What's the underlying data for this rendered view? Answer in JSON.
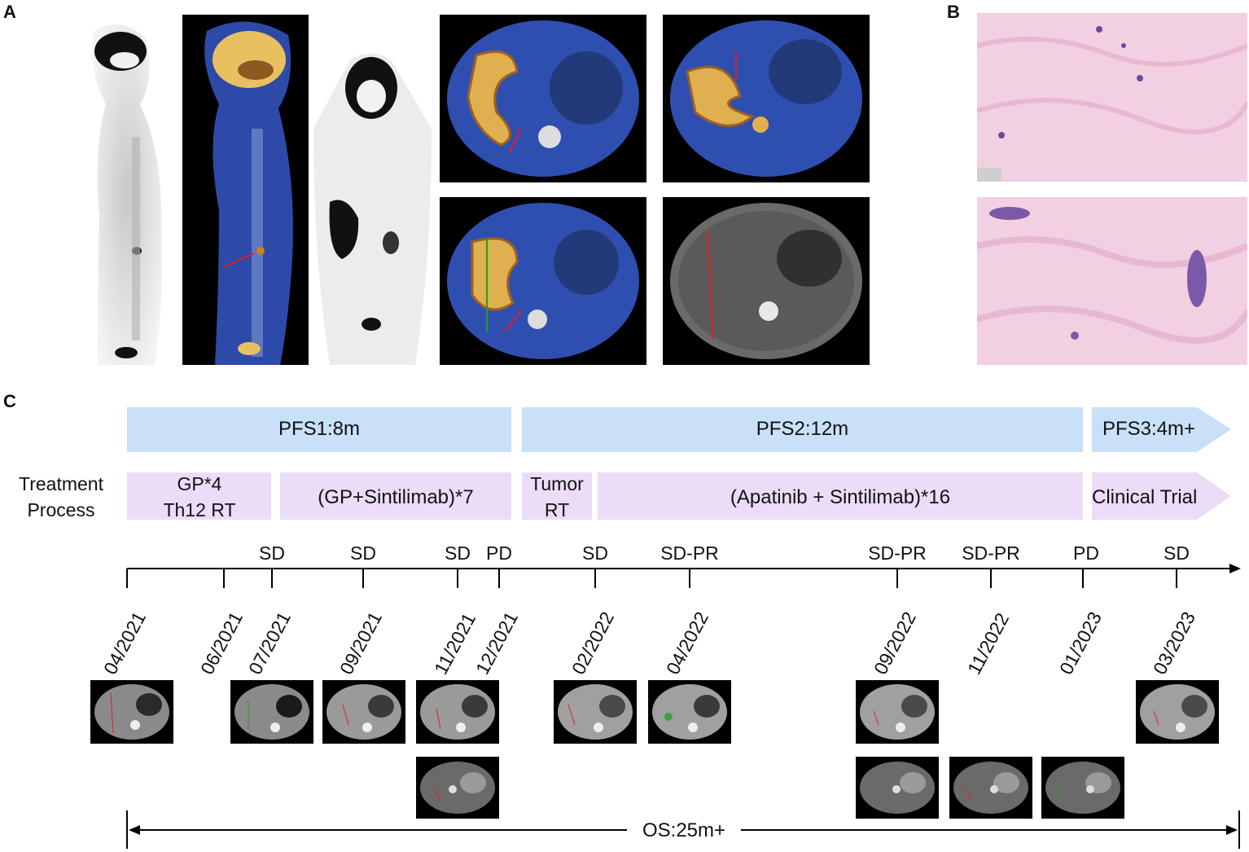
{
  "panels": {
    "a": "A",
    "b": "B",
    "c": "C"
  },
  "timeline": {
    "pfs": [
      {
        "label": "PFS1:8m"
      },
      {
        "label": "PFS2:12m"
      },
      {
        "label": "PFS3:4m+"
      }
    ],
    "treatment_label": "Treatment Process",
    "treatments": [
      {
        "label": "GP*4 Th12 RT"
      },
      {
        "label": "(GP+Sintilimab)*7"
      },
      {
        "label": "Tumor RT"
      },
      {
        "label": "(Apatinib + Sintilimab)*16"
      },
      {
        "label": "Clinical Trial"
      }
    ],
    "statuses": [
      "SD",
      "SD",
      "SD",
      "PD",
      "SD",
      "SD-PR",
      "SD-PR",
      "SD-PR",
      "PD",
      "SD"
    ],
    "dates": [
      "04/2021",
      "06/2021",
      "07/2021",
      "09/2021",
      "11/2021",
      "12/2021",
      "02/2022",
      "04/2022",
      "09/2022",
      "11/2022",
      "01/2023",
      "03/2023"
    ],
    "os_label": "OS:25m+"
  },
  "colors": {
    "pfs_bar": "#c8e0f8",
    "treatment_bar": "#ecdcf8",
    "axis": "#000000",
    "annotation_red": "#e02020"
  }
}
